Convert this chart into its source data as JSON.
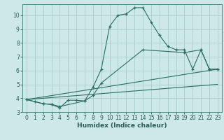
{
  "title": "",
  "xlabel": "Humidex (Indice chaleur)",
  "bg_color": "#cce8e8",
  "grid_color": "#aacccc",
  "line_color": "#2a6e60",
  "xlim": [
    -0.5,
    23.5
  ],
  "ylim": [
    3,
    10.8
  ],
  "xticks": [
    0,
    1,
    2,
    3,
    4,
    5,
    6,
    7,
    8,
    9,
    10,
    11,
    12,
    13,
    14,
    15,
    16,
    17,
    18,
    19,
    20,
    21,
    22,
    23
  ],
  "yticks": [
    3,
    4,
    5,
    6,
    7,
    8,
    9,
    10
  ],
  "lines": [
    {
      "x": [
        0,
        1,
        2,
        3,
        4,
        5,
        6,
        7,
        8,
        9,
        10,
        11,
        12,
        13,
        14,
        15,
        16,
        17,
        18,
        19,
        20,
        21,
        22,
        23
      ],
      "y": [
        3.9,
        3.75,
        3.6,
        3.55,
        3.3,
        3.85,
        3.85,
        3.8,
        4.8,
        6.1,
        9.2,
        10.0,
        10.1,
        10.55,
        10.55,
        9.5,
        8.55,
        7.75,
        7.5,
        7.5,
        6.1,
        7.5,
        6.1,
        6.1
      ],
      "marker": true
    },
    {
      "x": [
        0,
        2,
        3,
        4,
        7,
        8,
        9,
        14,
        19,
        21,
        22,
        23
      ],
      "y": [
        3.9,
        3.6,
        3.55,
        3.4,
        3.8,
        4.2,
        5.1,
        7.5,
        7.3,
        7.5,
        6.1,
        6.1
      ],
      "marker": true
    },
    {
      "x": [
        0,
        23
      ],
      "y": [
        3.9,
        5.0
      ],
      "marker": false
    },
    {
      "x": [
        0,
        23
      ],
      "y": [
        3.9,
        6.1
      ],
      "marker": false
    }
  ]
}
